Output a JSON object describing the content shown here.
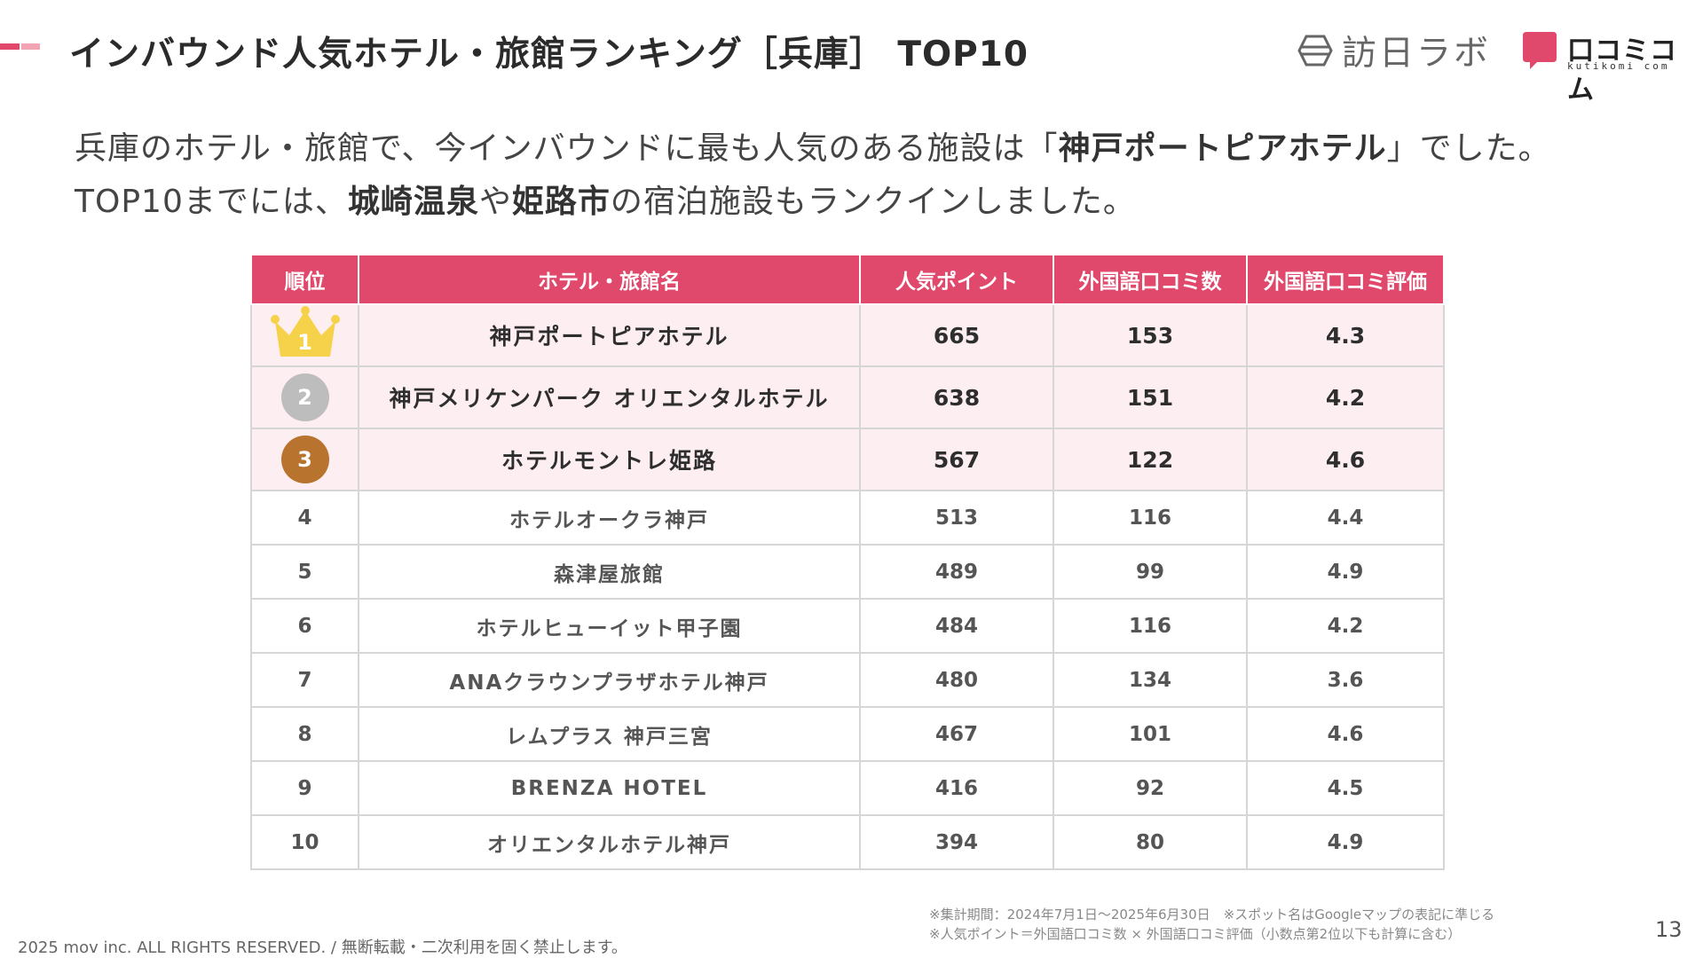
{
  "header": {
    "title": "インバウンド人気ホテル・旅館ランキング［兵庫］ TOP10",
    "logo_houjin": "訪日ラボ",
    "logo_kuchikomi_jp": "口コミコム",
    "logo_kuchikomi_en": "kutikomi com"
  },
  "intro": {
    "l1_a": "兵庫のホテル・旅館で、今インバウンドに最も人気のある施設は「",
    "l1_b": "神戸ポートピアホテル",
    "l1_c": "」でした。",
    "l2_a": "TOP10までには、",
    "l2_b": "城崎温泉",
    "l2_c": "や",
    "l2_d": "姫路市",
    "l2_e": "の宿泊施設もランクインしました。"
  },
  "table": {
    "headers": [
      "順位",
      "ホテル・旅館名",
      "人気ポイント",
      "外国語口コミ数",
      "外国語口コミ評価"
    ],
    "rows": [
      {
        "rank": "1",
        "name": "神戸ポートピアホテル",
        "points": "665",
        "count": "153",
        "rating": "4.3"
      },
      {
        "rank": "2",
        "name": "神戸メリケンパーク オリエンタルホテル",
        "points": "638",
        "count": "151",
        "rating": "4.2"
      },
      {
        "rank": "3",
        "name": "ホテルモントレ姫路",
        "points": "567",
        "count": "122",
        "rating": "4.6"
      },
      {
        "rank": "4",
        "name": "ホテルオークラ神戸",
        "points": "513",
        "count": "116",
        "rating": "4.4"
      },
      {
        "rank": "5",
        "name": "森津屋旅館",
        "points": "489",
        "count": "99",
        "rating": "4.9"
      },
      {
        "rank": "6",
        "name": "ホテルヒューイット甲子園",
        "points": "484",
        "count": "116",
        "rating": "4.2"
      },
      {
        "rank": "7",
        "name": "ANAクラウンプラザホテル神戸",
        "points": "480",
        "count": "134",
        "rating": "3.6"
      },
      {
        "rank": "8",
        "name": "レムプラス 神戸三宮",
        "points": "467",
        "count": "101",
        "rating": "4.6"
      },
      {
        "rank": "9",
        "name": "BRENZA HOTEL",
        "points": "416",
        "count": "92",
        "rating": "4.5"
      },
      {
        "rank": "10",
        "name": "オリエンタルホテル神戸",
        "points": "394",
        "count": "80",
        "rating": "4.9"
      }
    ]
  },
  "notes": {
    "line1": "※集計期間：2024年7月1日〜2025年6月30日　※スポット名はGoogleマップの表記に準じる",
    "line2": "※人気ポイント＝外国語口コミ数 × 外国語口コミ評価（小数点第2位以下も計算に含む）"
  },
  "footer": {
    "copyright": "2025 mov inc. ALL RIGHTS RESERVED. / 無断転載・二次利用を固く禁止します。",
    "page_number": "13"
  },
  "colors": {
    "accent": "#e0496b",
    "accent_light": "#f2a3b4",
    "top_row_bg": "#fdeef2",
    "gold": "#f5d24a",
    "silver": "#bdbdbd",
    "bronze": "#b8732e"
  }
}
